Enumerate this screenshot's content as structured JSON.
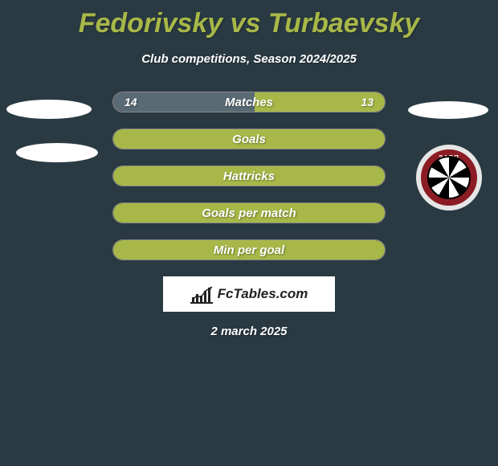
{
  "title": "Fedorivsky vs Turbaevsky",
  "subtitle": "Club competitions, Season 2024/2025",
  "colors": {
    "background": "#2a3a42",
    "accent_green": "#a8b848",
    "left_bar": "#5a6a74",
    "right_bar": "#a8b848",
    "text": "#ffffff",
    "badge_red": "#8c1c24",
    "badge_border": "#e6e6e6"
  },
  "bars": [
    {
      "label": "Matches",
      "left_value": "14",
      "right_value": "13",
      "left_pct": 52,
      "right_pct": 48,
      "left_color": "#5a6a74",
      "right_color": "#a8b848"
    },
    {
      "label": "Goals",
      "left_value": "",
      "right_value": "",
      "left_pct": 0,
      "right_pct": 100,
      "left_color": "#5a6a74",
      "right_color": "#a8b848"
    },
    {
      "label": "Hattricks",
      "left_value": "",
      "right_value": "",
      "left_pct": 0,
      "right_pct": 100,
      "left_color": "#5a6a74",
      "right_color": "#a8b848"
    },
    {
      "label": "Goals per match",
      "left_value": "",
      "right_value": "",
      "left_pct": 0,
      "right_pct": 100,
      "left_color": "#5a6a74",
      "right_color": "#a8b848"
    },
    {
      "label": "Min per goal",
      "left_value": "",
      "right_value": "",
      "left_pct": 0,
      "right_pct": 100,
      "left_color": "#5a6a74",
      "right_color": "#a8b848"
    }
  ],
  "brand": "FcTables.com",
  "date": "2 march 2025",
  "badge_label": "ЗАРЯ"
}
